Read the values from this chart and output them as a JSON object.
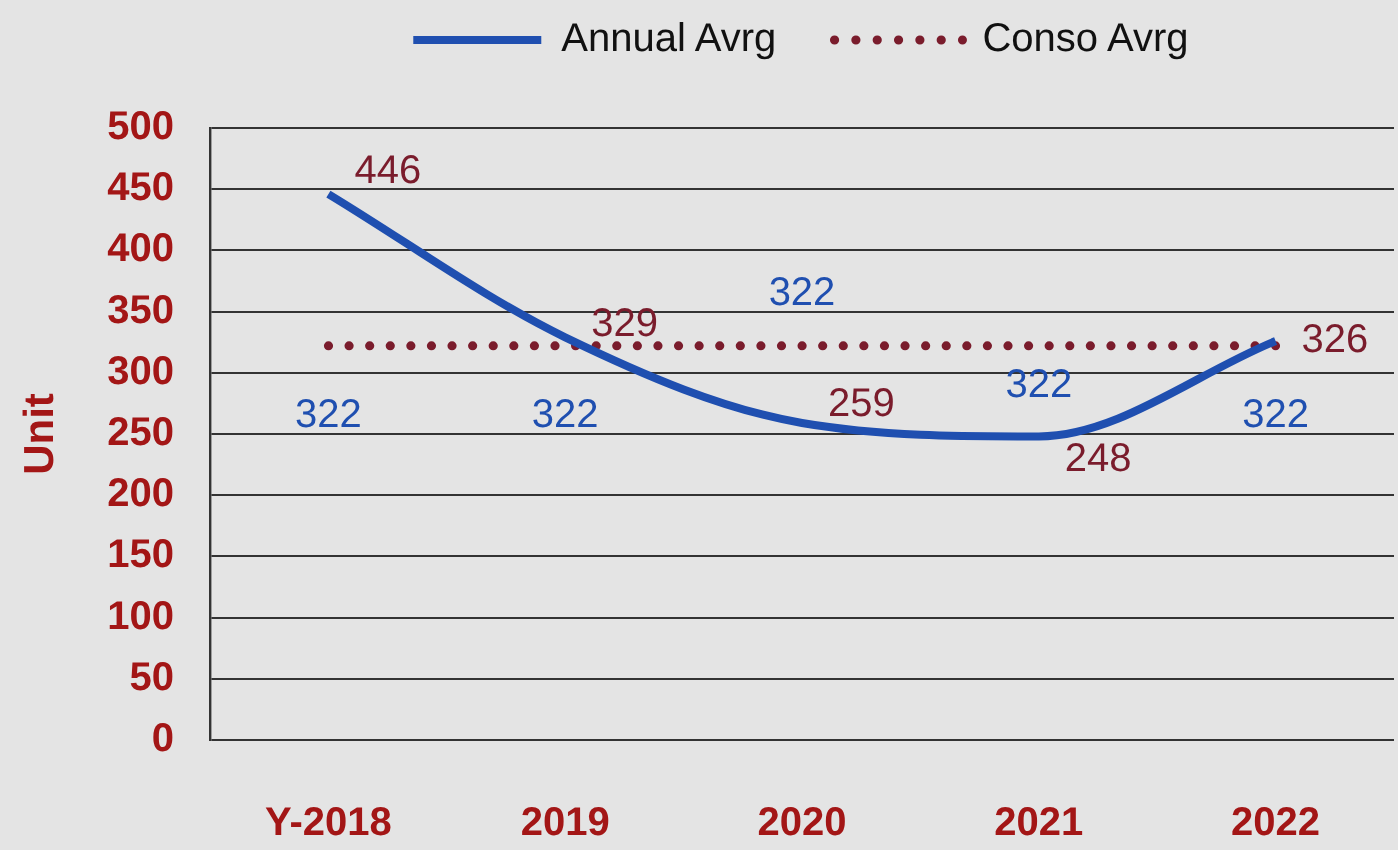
{
  "chart_data": {
    "type": "line",
    "categories": [
      "Y-2018",
      "2019",
      "2020",
      "2021",
      "2022"
    ],
    "series": [
      {
        "name": "Annual Avrg",
        "color": "#1f4fb0",
        "line_style": "solid",
        "values": [
          446,
          329,
          259,
          248,
          326
        ]
      },
      {
        "name": "Conso Avrg",
        "color": "#7a1c2c",
        "line_style": "dotted",
        "values": [
          322,
          322,
          322,
          322,
          322
        ]
      }
    ],
    "ylabel": "Unit",
    "ylim": [
      0,
      500
    ],
    "yticks": [
      0,
      50,
      100,
      150,
      200,
      250,
      300,
      350,
      400,
      450,
      500
    ],
    "grid": "y",
    "legend": "top",
    "marker": "none",
    "data_labels": true
  }
}
